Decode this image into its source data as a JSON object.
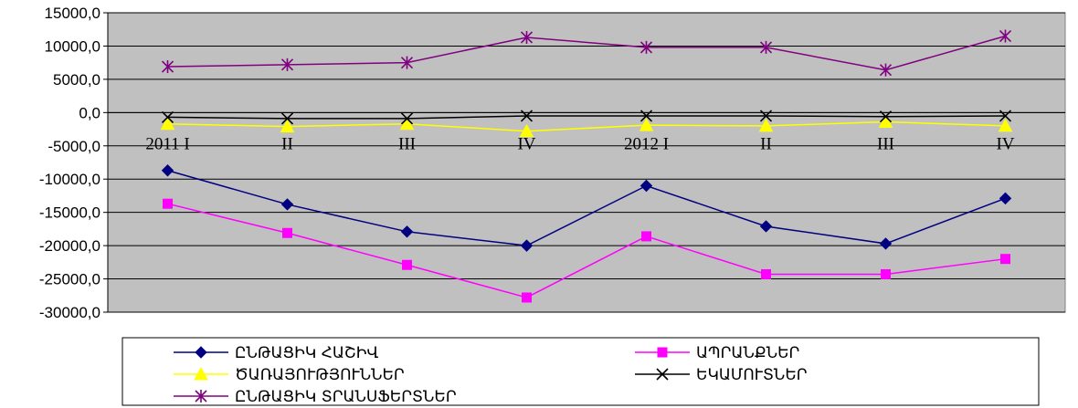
{
  "chart_data": {
    "type": "line",
    "title": "",
    "xlabel": "",
    "ylabel": "",
    "categories": [
      "2011 I",
      "II",
      "III",
      "IV",
      "2012 I",
      "II",
      "III",
      "IV"
    ],
    "ylim": [
      -30000,
      15000
    ],
    "y_ticks": [
      15000,
      10000,
      5000,
      0,
      -5000,
      -10000,
      -15000,
      -20000,
      -25000,
      -30000
    ],
    "y_tick_labels": [
      "15000,0",
      "10000,0",
      "5000,0",
      "0,0",
      "-5000,0",
      "-10000,0",
      "-15000,0",
      "-20000,0",
      "-25000,0",
      "-30000,0"
    ],
    "grid": true,
    "plot_background": "#c0c0c0",
    "legend_position": "bottom",
    "series": [
      {
        "name": "ԸՆԹԱՑԻԿ ՀԱՇԻՎ",
        "color": "#000080",
        "marker": "diamond",
        "values": [
          -8700,
          -13800,
          -17900,
          -20000,
          -11000,
          -17100,
          -19700,
          -12900
        ]
      },
      {
        "name": "ԱՊՐԱՆՔՆԵՐ",
        "color": "#ff00ff",
        "marker": "square",
        "values": [
          -13700,
          -18100,
          -22900,
          -27800,
          -18600,
          -24300,
          -24300,
          -22000
        ]
      },
      {
        "name": "ԾԱՌԱՅՈՒԹՅՈՒՆՆԵՐ",
        "color": "#ffff00",
        "marker": "triangle",
        "values": [
          -1700,
          -2100,
          -1700,
          -2800,
          -1900,
          -2000,
          -1400,
          -2000
        ]
      },
      {
        "name": "ԵԿԱՄՈՒՏՆԵՐ",
        "color": "#000000",
        "marker": "x",
        "values": [
          -700,
          -900,
          -900,
          -500,
          -500,
          -500,
          -600,
          -500
        ]
      },
      {
        "name": "ԸՆԹԱՑԻԿ ՏՐԱՆՍՖԵՐՏՆԵՐ",
        "color": "#800080",
        "marker": "star",
        "values": [
          6900,
          7200,
          7500,
          11300,
          9800,
          9800,
          6400,
          11500
        ]
      }
    ]
  }
}
